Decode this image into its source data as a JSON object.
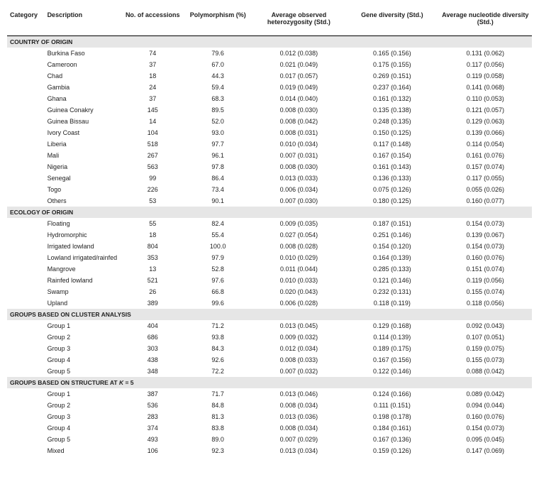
{
  "headers": {
    "category": "Category",
    "description": "Description",
    "accessions": "No. of accessions",
    "polymorphism": "Polymorphism (%)",
    "heterozygosity": "Average observed heterozygosity (Std.)",
    "gene_diversity": "Gene diversity (Std.)",
    "nucleotide": "Average nucleotide diversity (Std.)"
  },
  "sections": [
    {
      "title": "COUNTRY OF ORIGIN",
      "rows": [
        {
          "desc": "Burkina Faso",
          "acc": "74",
          "poly": "79.6",
          "het": "0.012 (0.038)",
          "gene": "0.165 (0.156)",
          "nuc": "0.131 (0.062)"
        },
        {
          "desc": "Cameroon",
          "acc": "37",
          "poly": "67.0",
          "het": "0.021 (0.049)",
          "gene": "0.175 (0.155)",
          "nuc": "0.117 (0.056)"
        },
        {
          "desc": "Chad",
          "acc": "18",
          "poly": "44.3",
          "het": "0.017 (0.057)",
          "gene": "0.269 (0.151)",
          "nuc": "0.119 (0.058)"
        },
        {
          "desc": "Gambia",
          "acc": "24",
          "poly": "59.4",
          "het": "0.019 (0.049)",
          "gene": "0.237 (0.164)",
          "nuc": "0.141 (0.068)"
        },
        {
          "desc": "Ghana",
          "acc": "37",
          "poly": "68.3",
          "het": "0.014 (0.040)",
          "gene": "0.161 (0.132)",
          "nuc": "0.110 (0.053)"
        },
        {
          "desc": "Guinea Conakry",
          "acc": "145",
          "poly": "89.5",
          "het": "0.008 (0.030)",
          "gene": "0.135 (0.138)",
          "nuc": "0.121 (0.057)"
        },
        {
          "desc": "Guinea Bissau",
          "acc": "14",
          "poly": "52.0",
          "het": "0.008 (0.042)",
          "gene": "0.248 (0.135)",
          "nuc": "0.129 (0.063)"
        },
        {
          "desc": "Ivory Coast",
          "acc": "104",
          "poly": "93.0",
          "het": "0.008 (0.031)",
          "gene": "0.150 (0.125)",
          "nuc": "0.139 (0.066)"
        },
        {
          "desc": "Liberia",
          "acc": "518",
          "poly": "97.7",
          "het": "0.010 (0.034)",
          "gene": "0.117 (0.148)",
          "nuc": "0.114 (0.054)"
        },
        {
          "desc": "Mali",
          "acc": "267",
          "poly": "96.1",
          "het": "0.007 (0.031)",
          "gene": "0.167 (0.154)",
          "nuc": "0.161 (0.076)"
        },
        {
          "desc": "Nigeria",
          "acc": "563",
          "poly": "97.8",
          "het": "0.008 (0.030)",
          "gene": "0.161 (0.143)",
          "nuc": "0.157 (0.074)"
        },
        {
          "desc": "Senegal",
          "acc": "99",
          "poly": "86.4",
          "het": "0.013 (0.033)",
          "gene": "0.136 (0.133)",
          "nuc": "0.117 (0.055)"
        },
        {
          "desc": "Togo",
          "acc": "226",
          "poly": "73.4",
          "het": "0.006 (0.034)",
          "gene": "0.075 (0.126)",
          "nuc": "0.055 (0.026)"
        },
        {
          "desc": "Others",
          "acc": "53",
          "poly": "90.1",
          "het": "0.007 (0.030)",
          "gene": "0.180 (0.125)",
          "nuc": "0.160 (0.077)"
        }
      ]
    },
    {
      "title": "ECOLOGY OF ORIGIN",
      "rows": [
        {
          "desc": "Floating",
          "acc": "55",
          "poly": "82.4",
          "het": "0.009 (0.035)",
          "gene": "0.187 (0.151)",
          "nuc": "0.154 (0.073)"
        },
        {
          "desc": "Hydromorphic",
          "acc": "18",
          "poly": "55.4",
          "het": "0.027 (0.054)",
          "gene": "0.251 (0.146)",
          "nuc": "0.139 (0.067)"
        },
        {
          "desc": "Irrigated lowland",
          "acc": "804",
          "poly": "100.0",
          "het": "0.008 (0.028)",
          "gene": "0.154 (0.120)",
          "nuc": "0.154 (0.073)"
        },
        {
          "desc": "Lowland irrigated/rainfed",
          "acc": "353",
          "poly": "97.9",
          "het": "0.010 (0.029)",
          "gene": "0.164 (0.139)",
          "nuc": "0.160 (0.076)"
        },
        {
          "desc": "Mangrove",
          "acc": "13",
          "poly": "52.8",
          "het": "0.011 (0.044)",
          "gene": "0.285 (0.133)",
          "nuc": "0.151 (0.074)"
        },
        {
          "desc": "Rainfed lowland",
          "acc": "521",
          "poly": "97.6",
          "het": "0.010 (0.033)",
          "gene": "0.121 (0.146)",
          "nuc": "0.119 (0.056)"
        },
        {
          "desc": "Swamp",
          "acc": "26",
          "poly": "66.8",
          "het": "0.020 (0.043)",
          "gene": "0.232 (0.131)",
          "nuc": "0.155 (0.074)"
        },
        {
          "desc": "Upland",
          "acc": "389",
          "poly": "99.6",
          "het": "0.006 (0.028)",
          "gene": "0.118 (0.119)",
          "nuc": "0.118 (0.056)"
        }
      ]
    },
    {
      "title": "GROUPS BASED ON CLUSTER ANALYSIS",
      "rows": [
        {
          "desc": "Group 1",
          "acc": "404",
          "poly": "71.2",
          "het": "0.013 (0.045)",
          "gene": "0.129 (0.168)",
          "nuc": "0.092 (0.043)"
        },
        {
          "desc": "Group 2",
          "acc": "686",
          "poly": "93.8",
          "het": "0.009 (0.032)",
          "gene": "0.114 (0.139)",
          "nuc": "0.107 (0.051)"
        },
        {
          "desc": "Group 3",
          "acc": "303",
          "poly": "84.3",
          "het": "0.012 (0.034)",
          "gene": "0.189 (0.175)",
          "nuc": "0.159 (0.075)"
        },
        {
          "desc": "Group 4",
          "acc": "438",
          "poly": "92.6",
          "het": "0.008 (0.033)",
          "gene": "0.167 (0.156)",
          "nuc": "0.155 (0.073)"
        },
        {
          "desc": "Group 5",
          "acc": "348",
          "poly": "72.2",
          "het": "0.007 (0.032)",
          "gene": "0.122 (0.146)",
          "nuc": "0.088 (0.042)"
        }
      ]
    },
    {
      "title": "GROUPS BASED ON STRUCTURE AT K = 5",
      "title_html": "GROUPS BASED ON STRUCTURE AT <i>K</i> = 5",
      "rows": [
        {
          "desc": "Group 1",
          "acc": "387",
          "poly": "71.7",
          "het": "0.013 (0.046)",
          "gene": "0.124 (0.166)",
          "nuc": "0.089 (0.042)"
        },
        {
          "desc": "Group 2",
          "acc": "536",
          "poly": "84.8",
          "het": "0.008 (0.034)",
          "gene": "0.111 (0.151)",
          "nuc": "0.094 (0.044)"
        },
        {
          "desc": "Group 3",
          "acc": "283",
          "poly": "81.3",
          "het": "0.013 (0.036)",
          "gene": "0.198 (0.178)",
          "nuc": "0.160 (0.076)"
        },
        {
          "desc": "Group 4",
          "acc": "374",
          "poly": "83.8",
          "het": "0.008 (0.034)",
          "gene": "0.184 (0.161)",
          "nuc": "0.154 (0.073)"
        },
        {
          "desc": "Group 5",
          "acc": "493",
          "poly": "89.0",
          "het": "0.007 (0.029)",
          "gene": "0.167 (0.136)",
          "nuc": "0.095 (0.045)"
        },
        {
          "desc": "Mixed",
          "acc": "106",
          "poly": "92.3",
          "het": "0.013 (0.034)",
          "gene": "0.159 (0.126)",
          "nuc": "0.147 (0.069)"
        }
      ]
    }
  ]
}
